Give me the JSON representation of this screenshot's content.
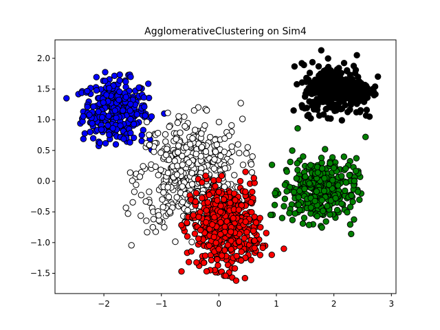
{
  "chart_data": {
    "type": "scatter",
    "title": "AgglomerativeClustering on Sim4",
    "xlabel": "",
    "ylabel": "",
    "xlim": [
      -2.85,
      3.08
    ],
    "ylim": [
      -1.83,
      2.3
    ],
    "x_ticks": [
      -2,
      -1,
      0,
      1,
      2,
      3
    ],
    "y_ticks": [
      -1.5,
      -1.0,
      -0.5,
      0.0,
      0.5,
      1.0,
      1.5,
      2.0
    ],
    "x_tick_labels": [
      "−2",
      "−1",
      "0",
      "1",
      "2",
      "3"
    ],
    "y_tick_labels": [
      "−1.5",
      "−1.0",
      "−0.5",
      "0.0",
      "0.5",
      "1.0",
      "1.5",
      "2.0"
    ],
    "grid": false,
    "legend": "none",
    "marker_edge_color": "#000000",
    "series": [
      {
        "color": "#0000ff",
        "center": [
          -1.8,
          1.15
        ],
        "spread": [
          0.28,
          0.25
        ],
        "count": 330,
        "x": [
          -2.65,
          -0.95,
          -1.62,
          -1.2
        ],
        "y": [
          1.35,
          1.1,
          1.62,
          0.68
        ]
      },
      {
        "color": "#ffffff",
        "center": [
          -0.5,
          0.1
        ],
        "spread": [
          0.45,
          0.45
        ],
        "count": 480,
        "x": [
          0.38,
          -1.58,
          -0.43,
          -0.95,
          -0.5
        ],
        "y": [
          1.27,
          -0.53,
          1.15,
          -0.75,
          0.6
        ]
      },
      {
        "color": "#ff0000",
        "center": [
          0.12,
          -0.73
        ],
        "spread": [
          0.3,
          0.34
        ],
        "count": 480,
        "x": [
          -0.65,
          1.13,
          0.3,
          0.92
        ],
        "y": [
          -1.47,
          -1.1,
          -1.62,
          -1.2
        ]
      },
      {
        "color": "#008000",
        "center": [
          1.75,
          -0.15
        ],
        "spread": [
          0.32,
          0.26
        ],
        "count": 330,
        "x": [
          1.1,
          2.3,
          2.55,
          1.37,
          0.9
        ],
        "y": [
          -0.6,
          -0.86,
          0.72,
          0.86,
          -0.55
        ]
      },
      {
        "color": "#000000",
        "center": [
          2.05,
          1.5
        ],
        "spread": [
          0.3,
          0.2
        ],
        "count": 330,
        "x": [
          1.78,
          2.7,
          2.4,
          1.3,
          2.62
        ],
        "y": [
          2.13,
          1.4,
          2.05,
          1.15,
          1.05
        ]
      }
    ]
  }
}
